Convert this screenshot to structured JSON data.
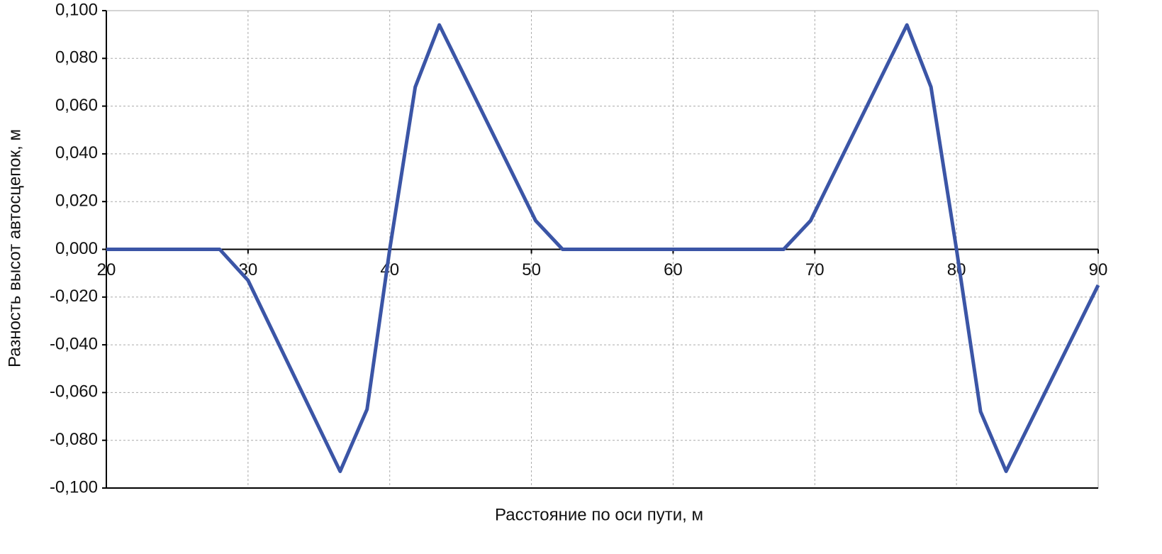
{
  "chart_data": {
    "type": "line",
    "x_label": "Расстояние по оси пути, м",
    "y_label": "Разность высот автосцепок, м",
    "x": [
      20,
      28,
      30,
      36.5,
      38.4,
      40,
      41.8,
      43.5,
      50.3,
      52.2,
      67.8,
      69.7,
      76.5,
      78.2,
      80,
      81.7,
      83.5,
      90
    ],
    "series": [
      {
        "color": "#3b55a6",
        "values": [
          0,
          0,
          -0.013,
          -0.093,
          -0.067,
          0,
          0.068,
          0.094,
          0.012,
          0,
          0,
          0.012,
          0.094,
          0.068,
          0,
          -0.068,
          -0.093,
          -0.015
        ]
      }
    ],
    "xlim": [
      20,
      90
    ],
    "xticks": [
      20,
      30,
      40,
      50,
      60,
      70,
      80,
      90
    ],
    "ylim": [
      -0.1,
      0.1
    ],
    "yticks": [
      {
        "value": -0.1,
        "label": "-0,100"
      },
      {
        "value": -0.08,
        "label": "-0,080"
      },
      {
        "value": -0.06,
        "label": "-0,060"
      },
      {
        "value": -0.04,
        "label": "-0,040"
      },
      {
        "value": -0.02,
        "label": "-0,020"
      },
      {
        "value": 0,
        "label": "0,000"
      },
      {
        "value": 0.02,
        "label": "0,020"
      },
      {
        "value": 0.04,
        "label": "0,040"
      },
      {
        "value": 0.06,
        "label": "0,060"
      },
      {
        "value": 0.08,
        "label": "0,080"
      },
      {
        "value": 0.1,
        "label": "0,100"
      }
    ],
    "grid": true
  }
}
